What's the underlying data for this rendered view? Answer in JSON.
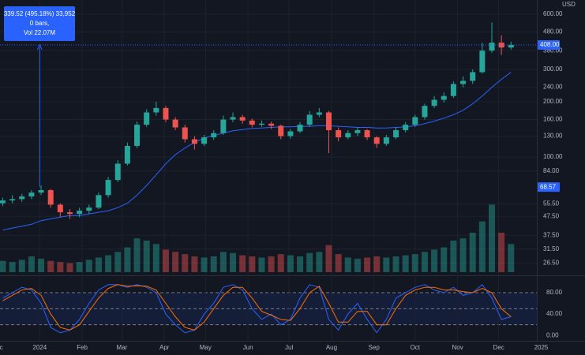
{
  "chart_data": [
    {
      "type": "candlestick",
      "currency": "USD",
      "log_scale": true,
      "grid": true,
      "xlim": [
        2,
        429
      ],
      "ylim": [
        22.9,
        717
      ],
      "yticks": [
        {
          "value": 600,
          "label": "600.00"
        },
        {
          "value": 480,
          "label": "480.00"
        },
        {
          "value": 380,
          "label": "380.00"
        },
        {
          "value": 300,
          "label": "300.00"
        },
        {
          "value": 240,
          "label": "240.00"
        },
        {
          "value": 200,
          "label": "200.00"
        },
        {
          "value": 160,
          "label": "160.00"
        },
        {
          "value": 130,
          "label": "130.00"
        },
        {
          "value": 100,
          "label": "100.00"
        },
        {
          "value": 84,
          "label": "84.00"
        },
        {
          "value": 55.5,
          "label": "55.50"
        },
        {
          "value": 47.5,
          "label": "47.50"
        },
        {
          "value": 37.5,
          "label": "37.50"
        },
        {
          "value": 31.5,
          "label": "31.50"
        },
        {
          "value": 26.5,
          "label": "26.50"
        }
      ],
      "up_color": "#26a69a",
      "down_color": "#ef5350",
      "x": [
        4,
        11,
        18,
        25,
        32,
        39,
        46,
        53,
        60,
        67,
        74,
        81,
        88,
        95,
        102,
        109,
        116,
        123,
        130,
        137,
        144,
        151,
        158,
        165,
        172,
        179,
        186,
        193,
        200,
        207,
        214,
        221,
        228,
        235,
        242,
        249,
        256,
        263,
        270,
        277,
        284,
        291,
        298,
        305,
        312,
        319,
        326,
        333,
        340,
        347,
        354,
        361,
        368,
        375
      ],
      "open": [
        56,
        58,
        59,
        61,
        64,
        66,
        55,
        50,
        49,
        51,
        53,
        62,
        75,
        92,
        115,
        150,
        175,
        185,
        160,
        145,
        125,
        118,
        128,
        135,
        160,
        165,
        158,
        150,
        152,
        148,
        130,
        138,
        150,
        170,
        175,
        140,
        128,
        135,
        140,
        128,
        118,
        128,
        140,
        150,
        165,
        190,
        205,
        215,
        250,
        260,
        290,
        380,
        420,
        395
      ],
      "high": [
        60,
        62,
        63,
        66,
        70,
        67,
        56,
        52,
        53,
        55,
        64,
        78,
        96,
        120,
        156,
        182,
        200,
        190,
        165,
        150,
        130,
        132,
        140,
        168,
        175,
        170,
        162,
        158,
        156,
        150,
        142,
        155,
        178,
        185,
        178,
        145,
        140,
        145,
        142,
        130,
        132,
        145,
        155,
        170,
        195,
        215,
        225,
        258,
        275,
        300,
        420,
        540,
        460,
        425
      ],
      "low": [
        54,
        56,
        57,
        59,
        62,
        53,
        47,
        46,
        47,
        49,
        52,
        60,
        73,
        90,
        112,
        146,
        168,
        155,
        140,
        120,
        110,
        115,
        124,
        132,
        155,
        152,
        145,
        146,
        142,
        125,
        126,
        135,
        146,
        165,
        105,
        122,
        125,
        130,
        124,
        112,
        115,
        125,
        136,
        146,
        160,
        185,
        198,
        210,
        240,
        250,
        285,
        370,
        360,
        385
      ],
      "close": [
        58,
        59,
        61,
        64,
        66,
        55,
        50,
        49,
        51,
        53,
        62,
        75,
        92,
        115,
        150,
        175,
        185,
        160,
        145,
        125,
        118,
        128,
        135,
        160,
        165,
        158,
        150,
        152,
        148,
        130,
        138,
        150,
        170,
        175,
        140,
        128,
        135,
        140,
        128,
        118,
        128,
        140,
        150,
        165,
        190,
        205,
        215,
        250,
        260,
        290,
        380,
        420,
        395,
        408
      ],
      "volume_lim": [
        0,
        140
      ],
      "volume": [
        10,
        9,
        11,
        14,
        12,
        10,
        9,
        8,
        9,
        11,
        13,
        15,
        18,
        22,
        30,
        28,
        25,
        20,
        18,
        16,
        14,
        13,
        14,
        18,
        17,
        15,
        14,
        13,
        14,
        16,
        15,
        14,
        17,
        18,
        24,
        16,
        13,
        12,
        13,
        14,
        13,
        14,
        15,
        16,
        18,
        20,
        22,
        28,
        30,
        35,
        45,
        60,
        35,
        25
      ],
      "ma": {
        "color": "#2962ff",
        "values": [
          40,
          41,
          42,
          43,
          45,
          46,
          47,
          48,
          48,
          49,
          50,
          51,
          53,
          56,
          62,
          70,
          80,
          92,
          103,
          112,
          120,
          127,
          131,
          135,
          139,
          141,
          143,
          144,
          145,
          146,
          146,
          147,
          147,
          148,
          148,
          147,
          146,
          145,
          145,
          144,
          144,
          145,
          146,
          148,
          152,
          157,
          163,
          170,
          180,
          195,
          215,
          240,
          265,
          290
        ]
      },
      "price_labels": [
        {
          "value": 408,
          "label": "408.00"
        },
        {
          "value": 68.57,
          "label": "68.57"
        }
      ],
      "measure": {
        "x": 31,
        "text": [
          "339.52 (495.18%) 33,952",
          "0 bars,",
          "Vol 22.07M"
        ]
      }
    },
    {
      "type": "line",
      "grid": true,
      "xlim": [
        2,
        429
      ],
      "ylim": [
        -10,
        108
      ],
      "yticks": [
        {
          "value": 80,
          "label": "80.00"
        },
        {
          "value": 40,
          "label": "40.00"
        },
        {
          "value": 0,
          "label": "0.00"
        }
      ],
      "bands": [
        20,
        50,
        80
      ],
      "xticks": [
        {
          "value": 0,
          "label": "Dec"
        },
        {
          "value": 31,
          "label": "2024"
        },
        {
          "value": 62,
          "label": "Feb"
        },
        {
          "value": 91,
          "label": "Mar"
        },
        {
          "value": 122,
          "label": "Apr"
        },
        {
          "value": 152,
          "label": "May"
        },
        {
          "value": 183,
          "label": "Jun"
        },
        {
          "value": 213,
          "label": "Jul"
        },
        {
          "value": 244,
          "label": "Aug"
        },
        {
          "value": 275,
          "label": "Sep"
        },
        {
          "value": 305,
          "label": "Oct"
        },
        {
          "value": 336,
          "label": "Nov"
        },
        {
          "value": 366,
          "label": "Dec"
        },
        {
          "value": 397,
          "label": "2025"
        }
      ],
      "x": [
        4,
        11,
        18,
        25,
        32,
        39,
        46,
        53,
        60,
        67,
        74,
        81,
        88,
        95,
        102,
        109,
        116,
        123,
        130,
        137,
        144,
        151,
        158,
        165,
        172,
        179,
        186,
        193,
        200,
        207,
        214,
        221,
        228,
        235,
        242,
        249,
        256,
        263,
        270,
        277,
        284,
        291,
        298,
        305,
        312,
        319,
        326,
        333,
        340,
        347,
        354,
        361,
        368,
        375
      ],
      "series": [
        {
          "color": "#2962ff",
          "values": [
            70,
            80,
            90,
            85,
            60,
            15,
            5,
            10,
            30,
            60,
            85,
            95,
            95,
            90,
            95,
            90,
            80,
            40,
            20,
            5,
            10,
            40,
            60,
            90,
            95,
            85,
            50,
            30,
            40,
            20,
            30,
            70,
            95,
            90,
            30,
            10,
            40,
            60,
            30,
            5,
            30,
            70,
            80,
            90,
            95,
            85,
            80,
            90,
            75,
            80,
            95,
            70,
            30,
            35
          ]
        },
        {
          "color": "#ff6d00",
          "values": [
            65,
            75,
            85,
            88,
            75,
            40,
            15,
            10,
            20,
            45,
            70,
            88,
            95,
            92,
            93,
            92,
            85,
            60,
            35,
            15,
            10,
            25,
            50,
            75,
            90,
            90,
            70,
            45,
            38,
            30,
            28,
            50,
            80,
            92,
            60,
            25,
            25,
            45,
            45,
            20,
            20,
            50,
            75,
            85,
            90,
            90,
            85,
            85,
            82,
            80,
            88,
            80,
            50,
            35
          ]
        }
      ]
    }
  ]
}
